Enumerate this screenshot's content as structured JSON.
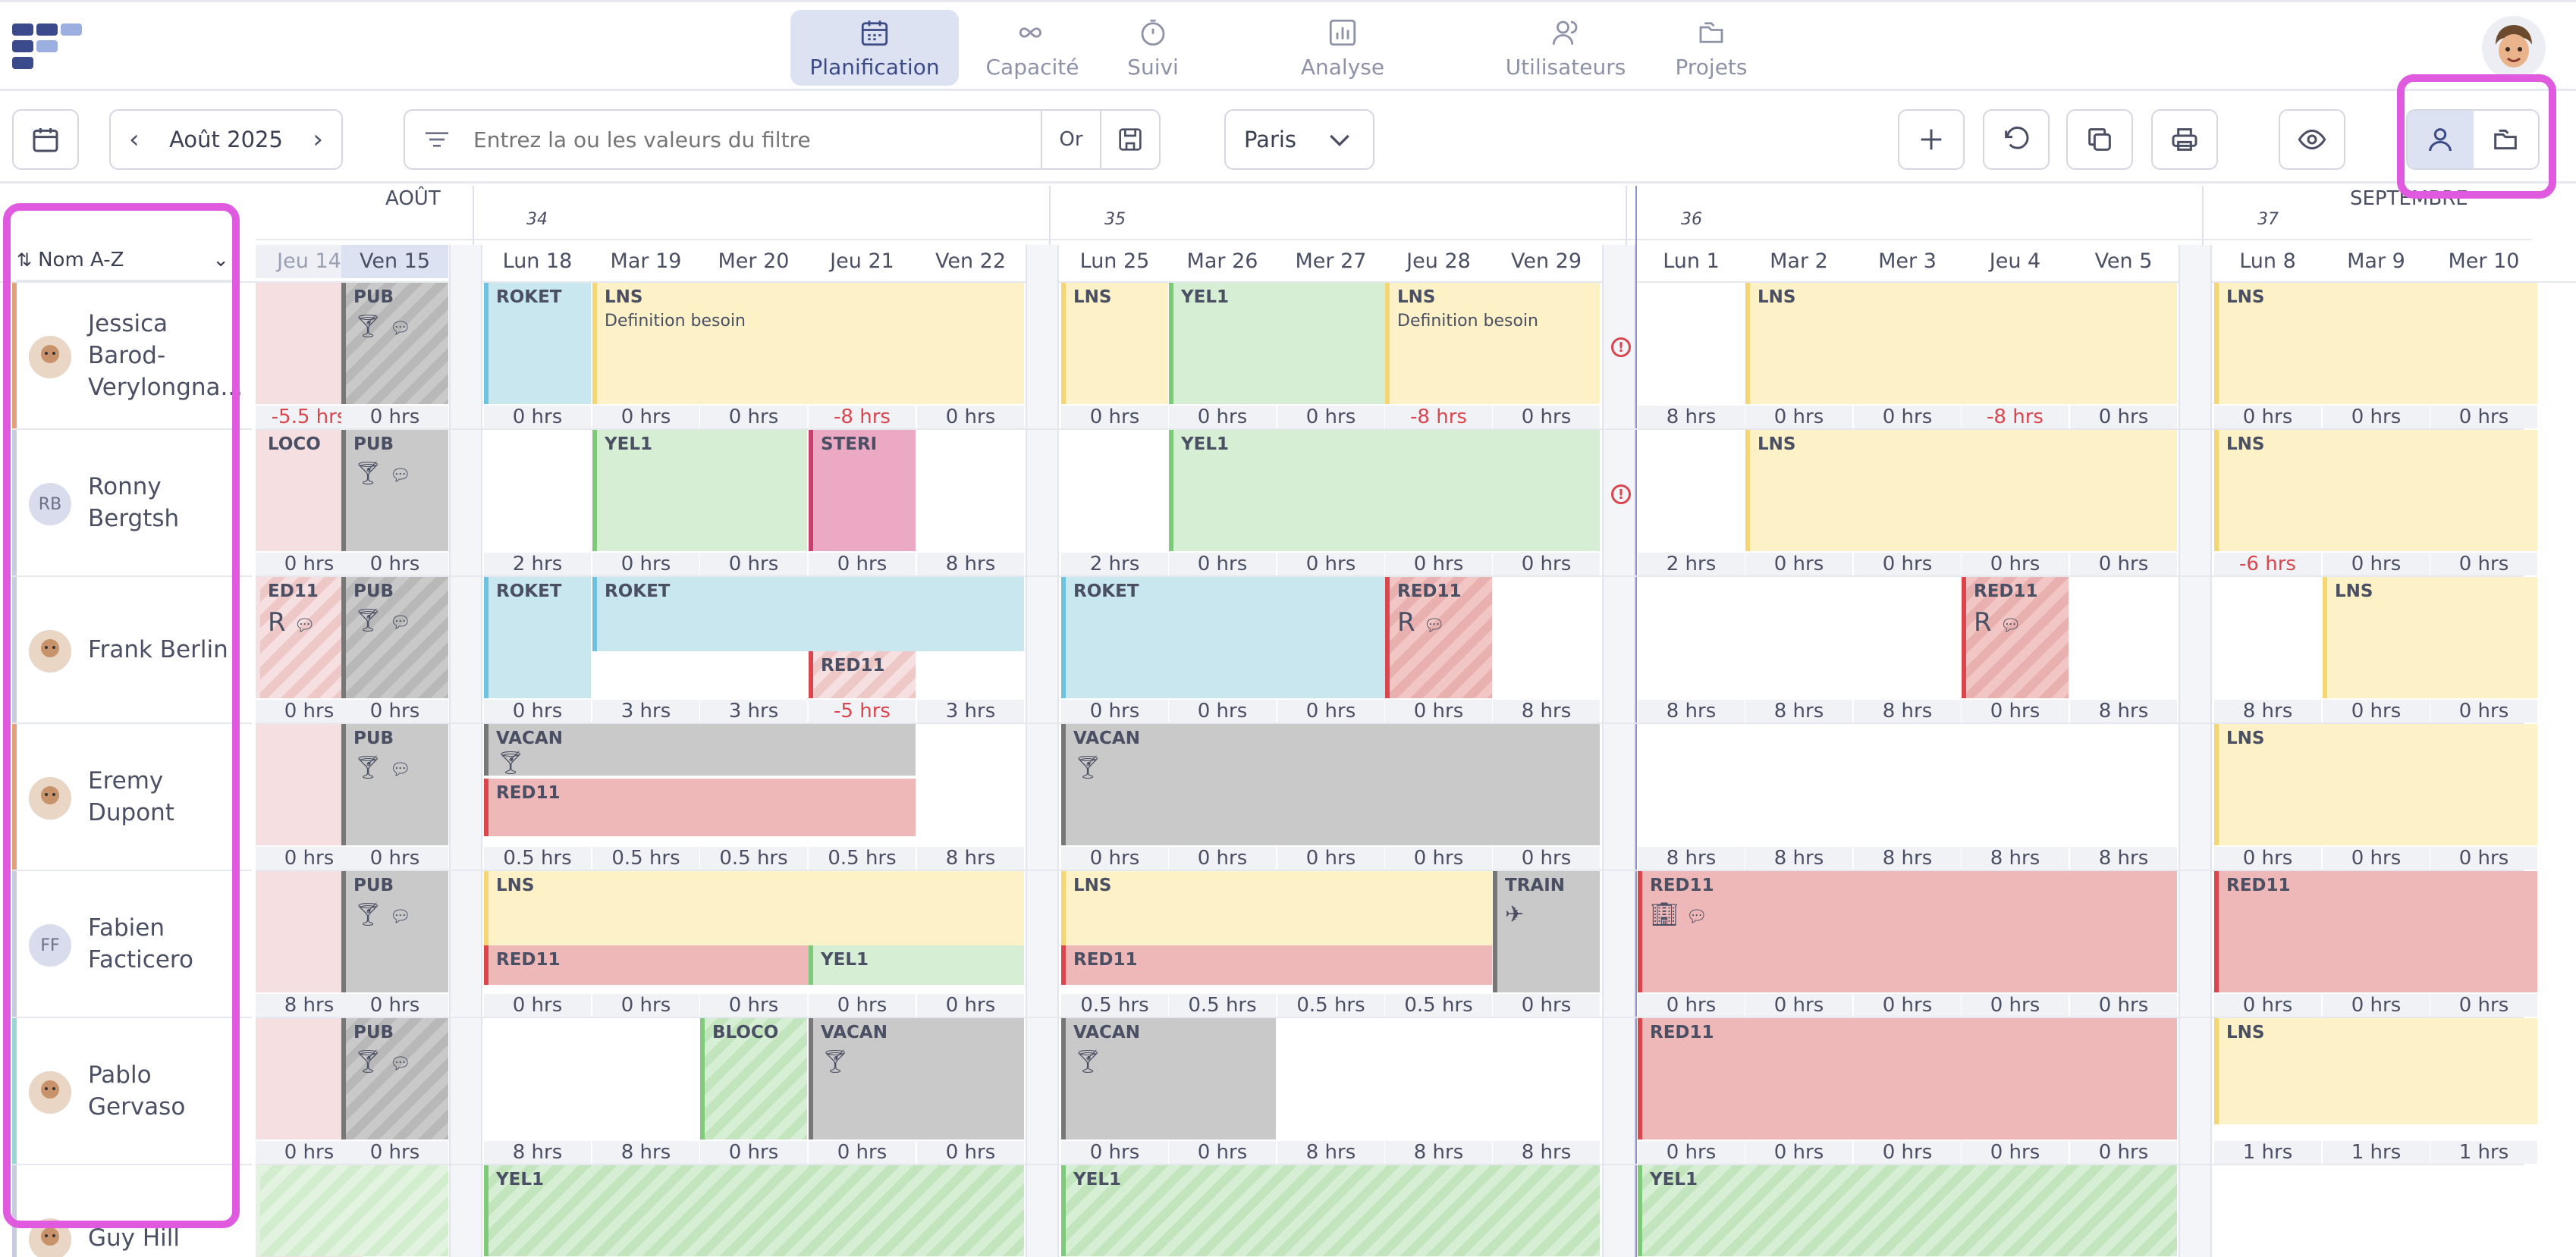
{
  "nav": {
    "items": [
      {
        "label": "Planification",
        "icon": "calendar-icon",
        "active": true
      },
      {
        "label": "Capacité",
        "icon": "infinity-icon"
      },
      {
        "label": "Suivi",
        "icon": "stopwatch-icon"
      },
      {
        "label": "Analyse",
        "icon": "bar-chart-icon"
      },
      {
        "label": "Utilisateurs",
        "icon": "users-icon"
      },
      {
        "label": "Projets",
        "icon": "folders-icon"
      }
    ]
  },
  "toolbar": {
    "month_label": "Août 2025",
    "filter_placeholder": "Entrez la ou les valeurs du filtre",
    "or_label": "Or",
    "city": "Paris"
  },
  "grid": {
    "sort_label": "Nom A-Z",
    "months": {
      "left": "AOÛT",
      "right": "SEPTEMBRE"
    },
    "weeks": [
      "34",
      "35",
      "36",
      "37"
    ],
    "days": [
      "Jeu 14",
      "Ven 15",
      "Lun 18",
      "Mar 19",
      "Mer 20",
      "Jeu 21",
      "Ven 22",
      "Lun 25",
      "Mar 26",
      "Mer 27",
      "Jeu 28",
      "Ven 29",
      "Lun 1",
      "Mar 2",
      "Mer 3",
      "Jeu 4",
      "Ven 5",
      "Lun 8",
      "Mar 9",
      "Mer 10"
    ],
    "people": [
      {
        "name": "Jessica Barod-Verylongna...",
        "initials": "",
        "hours": [
          "-5.5 hrs",
          "0 hrs",
          "0 hrs",
          "0 hrs",
          "0 hrs",
          "-8 hrs",
          "0 hrs",
          "0 hrs",
          "0 hrs",
          "0 hrs",
          "-8 hrs",
          "0 hrs",
          "8 hrs",
          "0 hrs",
          "0 hrs",
          "-8 hrs",
          "0 hrs",
          "0 hrs",
          "0 hrs",
          "0 hrs"
        ]
      },
      {
        "name": "Ronny Bergtsh",
        "initials": "RB",
        "hours": [
          "0 hrs",
          "0 hrs",
          "2 hrs",
          "0 hrs",
          "0 hrs",
          "0 hrs",
          "8 hrs",
          "2 hrs",
          "0 hrs",
          "0 hrs",
          "0 hrs",
          "0 hrs",
          "2 hrs",
          "0 hrs",
          "0 hrs",
          "0 hrs",
          "0 hrs",
          "-6 hrs",
          "0 hrs",
          "0 hrs"
        ]
      },
      {
        "name": "Frank Berlin",
        "initials": "",
        "hours": [
          "0 hrs",
          "0 hrs",
          "0 hrs",
          "3 hrs",
          "3 hrs",
          "-5 hrs",
          "3 hrs",
          "0 hrs",
          "0 hrs",
          "0 hrs",
          "0 hrs",
          "8 hrs",
          "8 hrs",
          "8 hrs",
          "8 hrs",
          "0 hrs",
          "8 hrs",
          "8 hrs",
          "0 hrs",
          "0 hrs"
        ]
      },
      {
        "name": "Eremy Dupont",
        "initials": "",
        "hours": [
          "0 hrs",
          "0 hrs",
          "0.5 hrs",
          "0.5 hrs",
          "0.5 hrs",
          "0.5 hrs",
          "8 hrs",
          "0 hrs",
          "0 hrs",
          "0 hrs",
          "0 hrs",
          "0 hrs",
          "8 hrs",
          "8 hrs",
          "8 hrs",
          "8 hrs",
          "8 hrs",
          "0 hrs",
          "0 hrs",
          "0 hrs"
        ]
      },
      {
        "name": "Fabien Facticero",
        "initials": "FF",
        "hours": [
          "8 hrs",
          "0 hrs",
          "0 hrs",
          "0 hrs",
          "0 hrs",
          "0 hrs",
          "0 hrs",
          "0.5 hrs",
          "0.5 hrs",
          "0.5 hrs",
          "0.5 hrs",
          "0 hrs",
          "0 hrs",
          "0 hrs",
          "0 hrs",
          "0 hrs",
          "0 hrs",
          "0 hrs",
          "0 hrs",
          "0 hrs"
        ]
      },
      {
        "name": "Pablo Gervaso",
        "initials": "",
        "hours": [
          "0 hrs",
          "0 hrs",
          "8 hrs",
          "8 hrs",
          "0 hrs",
          "0 hrs",
          "0 hrs",
          "0 hrs",
          "0 hrs",
          "8 hrs",
          "8 hrs",
          "8 hrs",
          "0 hrs",
          "0 hrs",
          "0 hrs",
          "0 hrs",
          "0 hrs",
          "1 hrs",
          "1 hrs",
          "1 hrs"
        ]
      },
      {
        "name": "Guy Hill",
        "initials": "",
        "hours": []
      }
    ],
    "events": {
      "roket": "ROKET",
      "lns": "LNS",
      "definition": "Definition besoin",
      "yel1": "YEL1",
      "pub": "PUB",
      "loco": "LOCO",
      "steri": "STERI",
      "red11": "RED11",
      "red11_cut": "ED11",
      "vacan": "VACAN",
      "train": "TRAIN",
      "bloco": "BLOCO",
      "r_letter": "R"
    }
  }
}
